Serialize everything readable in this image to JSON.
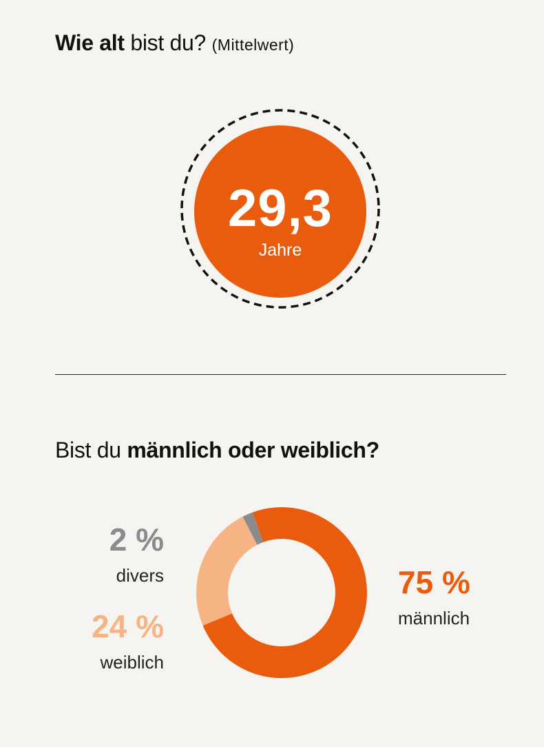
{
  "header": {
    "q1_bold": "Wie alt",
    "q1_rest": "bist du?",
    "q1_paren": "(Mittelwert)"
  },
  "age": {
    "value": "29,3",
    "unit": "Jahre"
  },
  "gender": {
    "q2_start": "Bist du",
    "q2_bold": "männlich oder weiblich?"
  },
  "chart_data": {
    "type": "pie",
    "title": "Bist du männlich oder weiblich?",
    "categories": [
      "männlich",
      "weiblich",
      "divers"
    ],
    "values": [
      75,
      24,
      2
    ],
    "value_labels": [
      "75 %",
      "24 %",
      "2 %"
    ],
    "colors": [
      "#e95c0e",
      "#f6b384",
      "#8b8a8d"
    ],
    "donut": true
  }
}
